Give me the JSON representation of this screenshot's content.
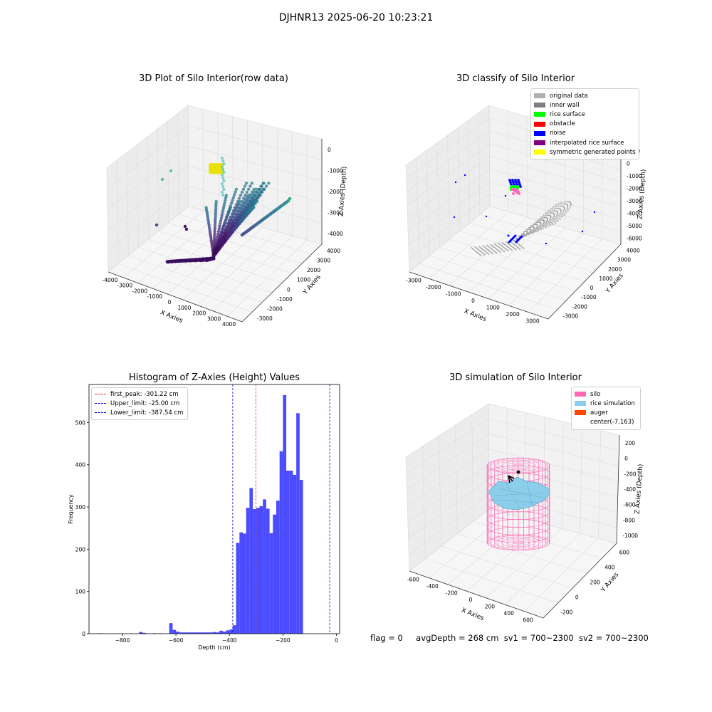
{
  "suptitle": "DJHNR13 2025-06-20 10:23:21",
  "colors": {
    "hist_bar": "#4b4bff",
    "first_peak_line": "#d62728",
    "limit_line": "#0000cc",
    "silo": "#ff69b4",
    "rice": "#87ceeb",
    "auger": "#ff4500"
  },
  "status_line": {
    "flag": "flag = 0",
    "avg_depth": "avgDepth = 268 cm",
    "sv1": "sv1 = 700~2300",
    "sv2": "sv2 = 700~2300"
  },
  "plots": {
    "raw": {
      "title": "3D Plot of Silo Interior(row data)",
      "xlabel": "X Axies",
      "ylabel": "Y Axies",
      "zlabel": "Z Axies (Depth)",
      "xticks": [
        "-4000",
        "-3000",
        "-2000",
        "-1000",
        "0",
        "1000",
        "2000",
        "3000",
        "4000"
      ],
      "yticks": [
        "-3000",
        "-2000",
        "-1000",
        "0",
        "1000",
        "2000",
        "3000",
        "4000"
      ],
      "zticks": [
        "0",
        "-1000",
        "-2000",
        "-3000",
        "-4000"
      ]
    },
    "classify": {
      "title": "3D classify of Silo Interior",
      "xlabel": "X Axies",
      "ylabel": "Y Axies",
      "zlabel": "Z Axies (Depth)",
      "xticks": [
        "-3000",
        "-2000",
        "-1000",
        "0",
        "1000",
        "2000",
        "3000"
      ],
      "yticks": [
        "-3000",
        "-2000",
        "-1000",
        "0",
        "1000",
        "2000",
        "3000",
        "4000"
      ],
      "zticks": [
        "1000",
        "0",
        "-1000",
        "-2000",
        "-3000",
        "-4000",
        "-5000",
        "-6000"
      ],
      "legend": [
        {
          "label": "original data",
          "color": "#b0b0b0"
        },
        {
          "label": "inner wall",
          "color": "#808080"
        },
        {
          "label": "rice surface",
          "color": "#00ff00"
        },
        {
          "label": "obstacle",
          "color": "#ff0000"
        },
        {
          "label": "noise",
          "color": "#0000ff"
        },
        {
          "label": "interpolated rice surface",
          "color": "#800080"
        },
        {
          "label": "symmetric generated points",
          "color": "#ffff00"
        }
      ]
    },
    "simulation": {
      "title": "3D simulation of Silo Interior",
      "xlabel": "X Axies",
      "ylabel": "Y Axies",
      "zlabel": "Z Axies (Depth)",
      "xticks": [
        "-600",
        "-400",
        "-200",
        "0",
        "200",
        "400",
        "600"
      ],
      "yticks": [
        "-200",
        "0",
        "200",
        "400",
        "600"
      ],
      "zticks": [
        "200",
        "0",
        "-200",
        "-400",
        "-600",
        "-800",
        "-1000"
      ],
      "legend": [
        {
          "label": "silo",
          "color": "#ff69b4"
        },
        {
          "label": "rice simulation",
          "color": "#87ceeb"
        },
        {
          "label": "auger",
          "color": "#ff4500"
        },
        {
          "label": "center(-7,163)",
          "color": ""
        }
      ]
    }
  },
  "chart_data": {
    "type": "bar",
    "title": "Histogram of Z-Axies (Height) Values",
    "xlabel": "Depth (cm)",
    "ylabel": "Frequency",
    "xlim": [
      -925,
      12
    ],
    "ylim": [
      0,
      590
    ],
    "xticks": [
      -800,
      -600,
      -400,
      -200,
      0
    ],
    "yticks": [
      0,
      100,
      200,
      300,
      400,
      500
    ],
    "bin_width": 12.5,
    "bins": [
      {
        "x0": -887.5,
        "value": 1
      },
      {
        "x0": -737.5,
        "value": 4
      },
      {
        "x0": -725,
        "value": 2
      },
      {
        "x0": -687.5,
        "value": 1
      },
      {
        "x0": -662.5,
        "value": 1
      },
      {
        "x0": -625,
        "value": 25
      },
      {
        "x0": -612.5,
        "value": 9
      },
      {
        "x0": -600,
        "value": 5
      },
      {
        "x0": -587.5,
        "value": 3
      },
      {
        "x0": -575,
        "value": 3
      },
      {
        "x0": -562.5,
        "value": 3
      },
      {
        "x0": -550,
        "value": 3
      },
      {
        "x0": -537.5,
        "value": 3
      },
      {
        "x0": -525,
        "value": 3
      },
      {
        "x0": -512.5,
        "value": 3
      },
      {
        "x0": -500,
        "value": 3
      },
      {
        "x0": -487.5,
        "value": 3
      },
      {
        "x0": -475,
        "value": 3
      },
      {
        "x0": -462.5,
        "value": 4
      },
      {
        "x0": -450,
        "value": 3
      },
      {
        "x0": -437.5,
        "value": 7
      },
      {
        "x0": -425,
        "value": 5
      },
      {
        "x0": -412.5,
        "value": 8
      },
      {
        "x0": -400,
        "value": 10
      },
      {
        "x0": -387.5,
        "value": 20
      },
      {
        "x0": -375,
        "value": 215
      },
      {
        "x0": -362.5,
        "value": 240
      },
      {
        "x0": -350,
        "value": 237
      },
      {
        "x0": -337.5,
        "value": 298
      },
      {
        "x0": -325,
        "value": 345
      },
      {
        "x0": -312.5,
        "value": 295
      },
      {
        "x0": -300,
        "value": 298
      },
      {
        "x0": -287.5,
        "value": 302
      },
      {
        "x0": -275,
        "value": 318
      },
      {
        "x0": -262.5,
        "value": 296
      },
      {
        "x0": -250,
        "value": 238
      },
      {
        "x0": -237.5,
        "value": 282
      },
      {
        "x0": -225,
        "value": 315
      },
      {
        "x0": -212.5,
        "value": 432
      },
      {
        "x0": -200,
        "value": 565
      },
      {
        "x0": -187.5,
        "value": 386
      },
      {
        "x0": -175,
        "value": 386
      },
      {
        "x0": -162.5,
        "value": 376
      },
      {
        "x0": -150,
        "value": 522
      },
      {
        "x0": -137.5,
        "value": 364
      }
    ],
    "hist_xmap_offset": 0,
    "vlines": [
      {
        "name": "first_peak",
        "label": "first_peak: -301.22 cm",
        "x": -301.22,
        "color": "#d62728"
      },
      {
        "name": "upper_limit",
        "label": "Upper_limit: -25.00 cm",
        "x": -25.0,
        "color": "#0000cc"
      },
      {
        "name": "lower_limit",
        "label": "Lower_limit: -387.54 cm",
        "x": -387.54,
        "color": "#0000cc"
      }
    ],
    "legend_position": "upper left"
  }
}
